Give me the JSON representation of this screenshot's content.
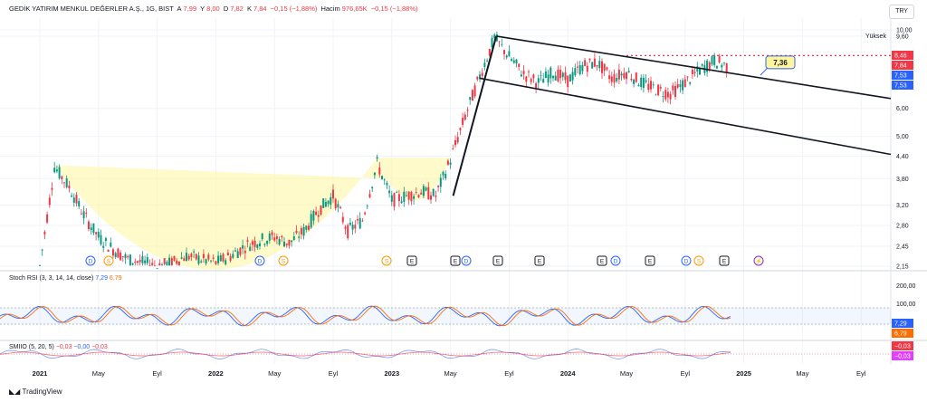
{
  "header": {
    "symbol": "GEDİK YATIRIM MENKUL DEĞERLER A.Ş., 1G, BIST",
    "open_label": "A",
    "open": "7,99",
    "high_label": "Y",
    "high": "8,00",
    "low_label": "D",
    "low": "7,82",
    "close_label": "K",
    "close": "7,84",
    "change": "−0,15 (−1,88%)",
    "volume_label": "Hacim",
    "volume": "976,65K",
    "volume_change": "−0,15 (−1,88%)"
  },
  "currency": "TRY",
  "price_pane": {
    "high_marker_label": "Yüksek",
    "high_marker_value": "9,60",
    "annotation": "7,36",
    "price_tags": [
      {
        "value": "8,46",
        "color": "#f23645"
      },
      {
        "value": "7,84",
        "color": "#f23645"
      },
      {
        "value": "7,53",
        "color": "#2962ff"
      },
      {
        "value": "7,53",
        "color": "#2962ff"
      }
    ],
    "event_badges": [
      "D",
      "S",
      "D",
      "S",
      "S",
      "E",
      "E",
      "D",
      "E",
      "E",
      "E",
      "D",
      "E",
      "D",
      "S",
      "E",
      "⚡"
    ]
  },
  "stoch_rsi": {
    "label": "Stoch RSI (3, 3, 14, 14, close)",
    "k_value": "7,29",
    "d_value": "6,79",
    "k_color": "#2962ff",
    "d_color": "#ff6d00",
    "axis_ticks": [
      "200,00",
      "100,00"
    ]
  },
  "smiio": {
    "label": "SMIIO (5, 20, 5)",
    "v1": "−0,03",
    "v2": "−0,00",
    "v3": "−0,03",
    "tag1": "−0,03",
    "tag2": "−0,03"
  },
  "brand": "TradingView",
  "chart_data": {
    "type": "candlestick",
    "title": "GEDİK YATIRIM MENKUL DEĞERLER A.Ş., 1G, BIST",
    "y_scale": "log",
    "ylim": [
      2.15,
      10.0
    ],
    "y_ticks": [
      10.0,
      9.6,
      6.0,
      5.0,
      4.4,
      3.8,
      3.2,
      2.8,
      2.45,
      2.15
    ],
    "x_ticks": [
      "2021",
      "May",
      "Eyl",
      "2022",
      "May",
      "Eyl",
      "2023",
      "May",
      "Eyl",
      "2024",
      "May",
      "Eyl",
      "2025",
      "May",
      "Eyl"
    ],
    "series": [
      {
        "name": "Close",
        "points": [
          [
            "2021-01",
            2.15
          ],
          [
            "2021-02",
            4.1
          ],
          [
            "2021-03",
            3.6
          ],
          [
            "2021-04",
            3.0
          ],
          [
            "2021-05",
            2.6
          ],
          [
            "2021-06",
            2.4
          ],
          [
            "2021-07",
            2.25
          ],
          [
            "2021-08",
            2.2
          ],
          [
            "2021-09",
            2.15
          ],
          [
            "2021-10",
            2.2
          ],
          [
            "2021-11",
            2.3
          ],
          [
            "2021-12",
            2.25
          ],
          [
            "2022-01",
            2.2
          ],
          [
            "2022-02",
            2.3
          ],
          [
            "2022-03",
            2.45
          ],
          [
            "2022-04",
            2.55
          ],
          [
            "2022-05",
            2.6
          ],
          [
            "2022-06",
            2.5
          ],
          [
            "2022-07",
            2.7
          ],
          [
            "2022-08",
            3.1
          ],
          [
            "2022-09",
            3.4
          ],
          [
            "2022-10",
            2.7
          ],
          [
            "2022-11",
            2.9
          ],
          [
            "2022-12",
            4.2
          ],
          [
            "2023-01",
            3.3
          ],
          [
            "2023-02",
            3.4
          ],
          [
            "2023-03",
            3.5
          ],
          [
            "2023-04",
            3.4
          ],
          [
            "2023-05",
            4.3
          ],
          [
            "2023-06",
            5.7
          ],
          [
            "2023-07",
            7.4
          ],
          [
            "2023-08",
            9.5
          ],
          [
            "2023-09",
            8.4
          ],
          [
            "2023-10",
            7.5
          ],
          [
            "2023-11",
            7.1
          ],
          [
            "2023-12",
            7.6
          ],
          [
            "2024-01",
            7.2
          ],
          [
            "2024-02",
            7.9
          ],
          [
            "2024-03",
            8.1
          ],
          [
            "2024-04",
            7.3
          ],
          [
            "2024-05",
            7.6
          ],
          [
            "2024-06",
            7.1
          ],
          [
            "2024-07",
            6.8
          ],
          [
            "2024-08",
            6.6
          ],
          [
            "2024-09",
            7.1
          ],
          [
            "2024-10",
            7.7
          ],
          [
            "2024-11",
            8.2
          ],
          [
            "2024-12",
            7.84
          ]
        ]
      }
    ],
    "annotations": {
      "horizontal_level": 8.46,
      "resistance_label": 7.36,
      "cup_and_handle": true,
      "descending_channel": true
    }
  }
}
